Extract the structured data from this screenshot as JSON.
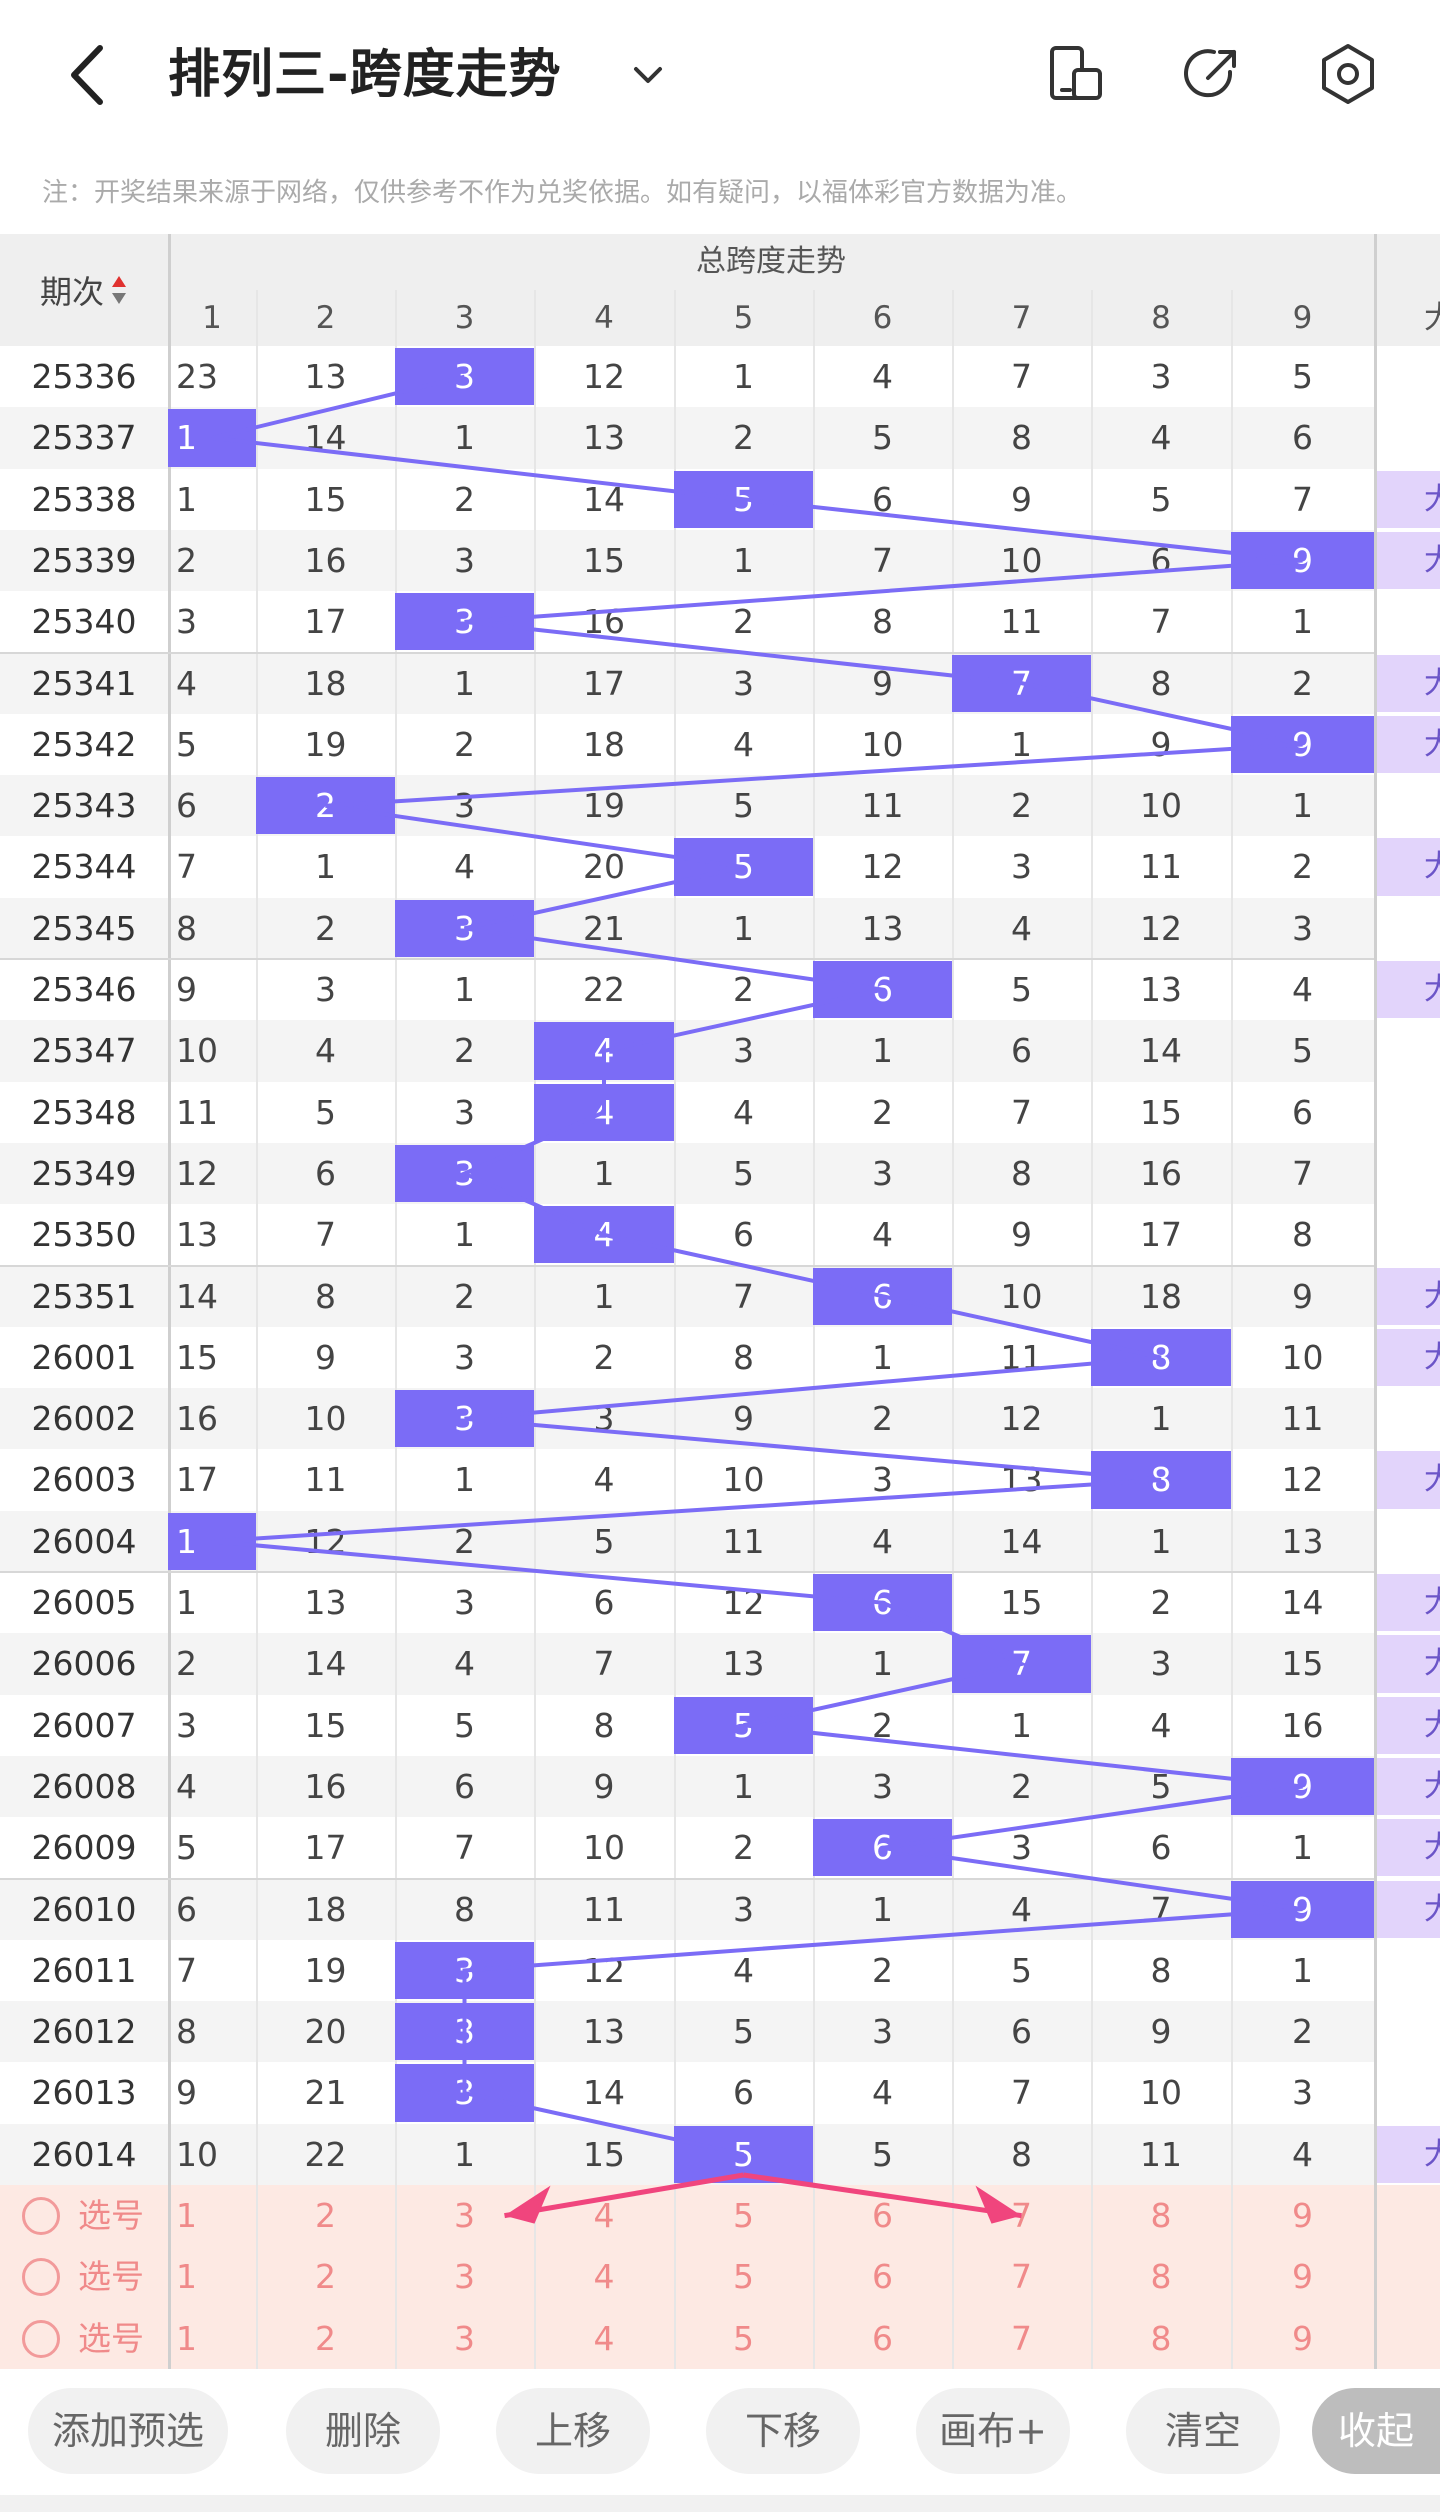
{
  "header": {
    "title": "排列三-跨度走势",
    "icons": [
      "back-arrow-icon",
      "chevron-down-icon",
      "phone-layout-icon",
      "share-icon",
      "settings-icon"
    ]
  },
  "note": "注：开奖结果来源于网络，仅供参考不作为兑奖依据。如有疑问，以福体彩官方数据为准。",
  "table": {
    "period_header": "期次",
    "span_title": "总跨度走势",
    "columns": [
      "1",
      "2",
      "3",
      "4",
      "5",
      "6",
      "7",
      "8",
      "9"
    ],
    "extra_column_glyph": "大",
    "rows": [
      {
        "period": "25336",
        "span": 3,
        "cells": [
          "23",
          "13",
          "3",
          "12",
          "1",
          "4",
          "7",
          "3",
          "5"
        ],
        "tagged": false
      },
      {
        "period": "25337",
        "span": 1,
        "cells": [
          "1",
          "14",
          "1",
          "13",
          "2",
          "5",
          "8",
          "4",
          "6"
        ],
        "tagged": false
      },
      {
        "period": "25338",
        "span": 5,
        "cells": [
          "1",
          "15",
          "2",
          "14",
          "5",
          "6",
          "9",
          "5",
          "7"
        ],
        "tagged": true
      },
      {
        "period": "25339",
        "span": 9,
        "cells": [
          "2",
          "16",
          "3",
          "15",
          "1",
          "7",
          "10",
          "6",
          "9"
        ],
        "tagged": true
      },
      {
        "period": "25340",
        "span": 3,
        "cells": [
          "3",
          "17",
          "3",
          "16",
          "2",
          "8",
          "11",
          "7",
          "1"
        ],
        "tagged": false
      },
      {
        "period": "25341",
        "span": 7,
        "cells": [
          "4",
          "18",
          "1",
          "17",
          "3",
          "9",
          "7",
          "8",
          "2"
        ],
        "tagged": true
      },
      {
        "period": "25342",
        "span": 9,
        "cells": [
          "5",
          "19",
          "2",
          "18",
          "4",
          "10",
          "1",
          "9",
          "9"
        ],
        "tagged": true
      },
      {
        "period": "25343",
        "span": 2,
        "cells": [
          "6",
          "2",
          "3",
          "19",
          "5",
          "11",
          "2",
          "10",
          "1"
        ],
        "tagged": false
      },
      {
        "period": "25344",
        "span": 5,
        "cells": [
          "7",
          "1",
          "4",
          "20",
          "5",
          "12",
          "3",
          "11",
          "2"
        ],
        "tagged": true
      },
      {
        "period": "25345",
        "span": 3,
        "cells": [
          "8",
          "2",
          "3",
          "21",
          "1",
          "13",
          "4",
          "12",
          "3"
        ],
        "tagged": false
      },
      {
        "period": "25346",
        "span": 6,
        "cells": [
          "9",
          "3",
          "1",
          "22",
          "2",
          "6",
          "5",
          "13",
          "4"
        ],
        "tagged": true
      },
      {
        "period": "25347",
        "span": 4,
        "cells": [
          "10",
          "4",
          "2",
          "4",
          "3",
          "1",
          "6",
          "14",
          "5"
        ],
        "tagged": false
      },
      {
        "period": "25348",
        "span": 4,
        "cells": [
          "11",
          "5",
          "3",
          "4",
          "4",
          "2",
          "7",
          "15",
          "6"
        ],
        "tagged": false
      },
      {
        "period": "25349",
        "span": 3,
        "cells": [
          "12",
          "6",
          "3",
          "1",
          "5",
          "3",
          "8",
          "16",
          "7"
        ],
        "tagged": false
      },
      {
        "period": "25350",
        "span": 4,
        "cells": [
          "13",
          "7",
          "1",
          "4",
          "6",
          "4",
          "9",
          "17",
          "8"
        ],
        "tagged": false
      },
      {
        "period": "25351",
        "span": 6,
        "cells": [
          "14",
          "8",
          "2",
          "1",
          "7",
          "6",
          "10",
          "18",
          "9"
        ],
        "tagged": true
      },
      {
        "period": "26001",
        "span": 8,
        "cells": [
          "15",
          "9",
          "3",
          "2",
          "8",
          "1",
          "11",
          "8",
          "10"
        ],
        "tagged": true
      },
      {
        "period": "26002",
        "span": 3,
        "cells": [
          "16",
          "10",
          "3",
          "3",
          "9",
          "2",
          "12",
          "1",
          "11"
        ],
        "tagged": false
      },
      {
        "period": "26003",
        "span": 8,
        "cells": [
          "17",
          "11",
          "1",
          "4",
          "10",
          "3",
          "13",
          "8",
          "12"
        ],
        "tagged": true
      },
      {
        "period": "26004",
        "span": 1,
        "cells": [
          "1",
          "12",
          "2",
          "5",
          "11",
          "4",
          "14",
          "1",
          "13"
        ],
        "tagged": false
      },
      {
        "period": "26005",
        "span": 6,
        "cells": [
          "1",
          "13",
          "3",
          "6",
          "12",
          "6",
          "15",
          "2",
          "14"
        ],
        "tagged": true
      },
      {
        "period": "26006",
        "span": 7,
        "cells": [
          "2",
          "14",
          "4",
          "7",
          "13",
          "1",
          "7",
          "3",
          "15"
        ],
        "tagged": true
      },
      {
        "period": "26007",
        "span": 5,
        "cells": [
          "3",
          "15",
          "5",
          "8",
          "5",
          "2",
          "1",
          "4",
          "16"
        ],
        "tagged": true
      },
      {
        "period": "26008",
        "span": 9,
        "cells": [
          "4",
          "16",
          "6",
          "9",
          "1",
          "3",
          "2",
          "5",
          "9"
        ],
        "tagged": true
      },
      {
        "period": "26009",
        "span": 6,
        "cells": [
          "5",
          "17",
          "7",
          "10",
          "2",
          "6",
          "3",
          "6",
          "1"
        ],
        "tagged": true
      },
      {
        "period": "26010",
        "span": 9,
        "cells": [
          "6",
          "18",
          "8",
          "11",
          "3",
          "1",
          "4",
          "7",
          "9"
        ],
        "tagged": true
      },
      {
        "period": "26011",
        "span": 3,
        "cells": [
          "7",
          "19",
          "3",
          "12",
          "4",
          "2",
          "5",
          "8",
          "1"
        ],
        "tagged": false
      },
      {
        "period": "26012",
        "span": 3,
        "cells": [
          "8",
          "20",
          "3",
          "13",
          "5",
          "3",
          "6",
          "9",
          "2"
        ],
        "tagged": false
      },
      {
        "period": "26013",
        "span": 3,
        "cells": [
          "9",
          "21",
          "3",
          "14",
          "6",
          "4",
          "7",
          "10",
          "3"
        ],
        "tagged": false
      },
      {
        "period": "26014",
        "span": 5,
        "cells": [
          "10",
          "22",
          "1",
          "15",
          "5",
          "5",
          "8",
          "11",
          "4"
        ],
        "tagged": true
      }
    ],
    "select_rows": [
      {
        "label": "选号",
        "cells": [
          "1",
          "2",
          "3",
          "4",
          "5",
          "6",
          "7",
          "8",
          "9"
        ]
      },
      {
        "label": "选号",
        "cells": [
          "1",
          "2",
          "3",
          "4",
          "5",
          "6",
          "7",
          "8",
          "9"
        ]
      },
      {
        "label": "选号",
        "cells": [
          "1",
          "2",
          "3",
          "4",
          "5",
          "6",
          "7",
          "8",
          "9"
        ]
      }
    ],
    "colors": {
      "hit": "#7b6cf6",
      "line": "#7b6cf6",
      "tag": "#e2d4fb",
      "select_bg": "#fde9e3",
      "select_text": "#f08a8a",
      "arrow": "#f0457d"
    }
  },
  "toolbar": {
    "buttons": [
      "添加预选",
      "删除",
      "上移",
      "下移",
      "画布+",
      "清空"
    ],
    "collapse": "收起"
  }
}
